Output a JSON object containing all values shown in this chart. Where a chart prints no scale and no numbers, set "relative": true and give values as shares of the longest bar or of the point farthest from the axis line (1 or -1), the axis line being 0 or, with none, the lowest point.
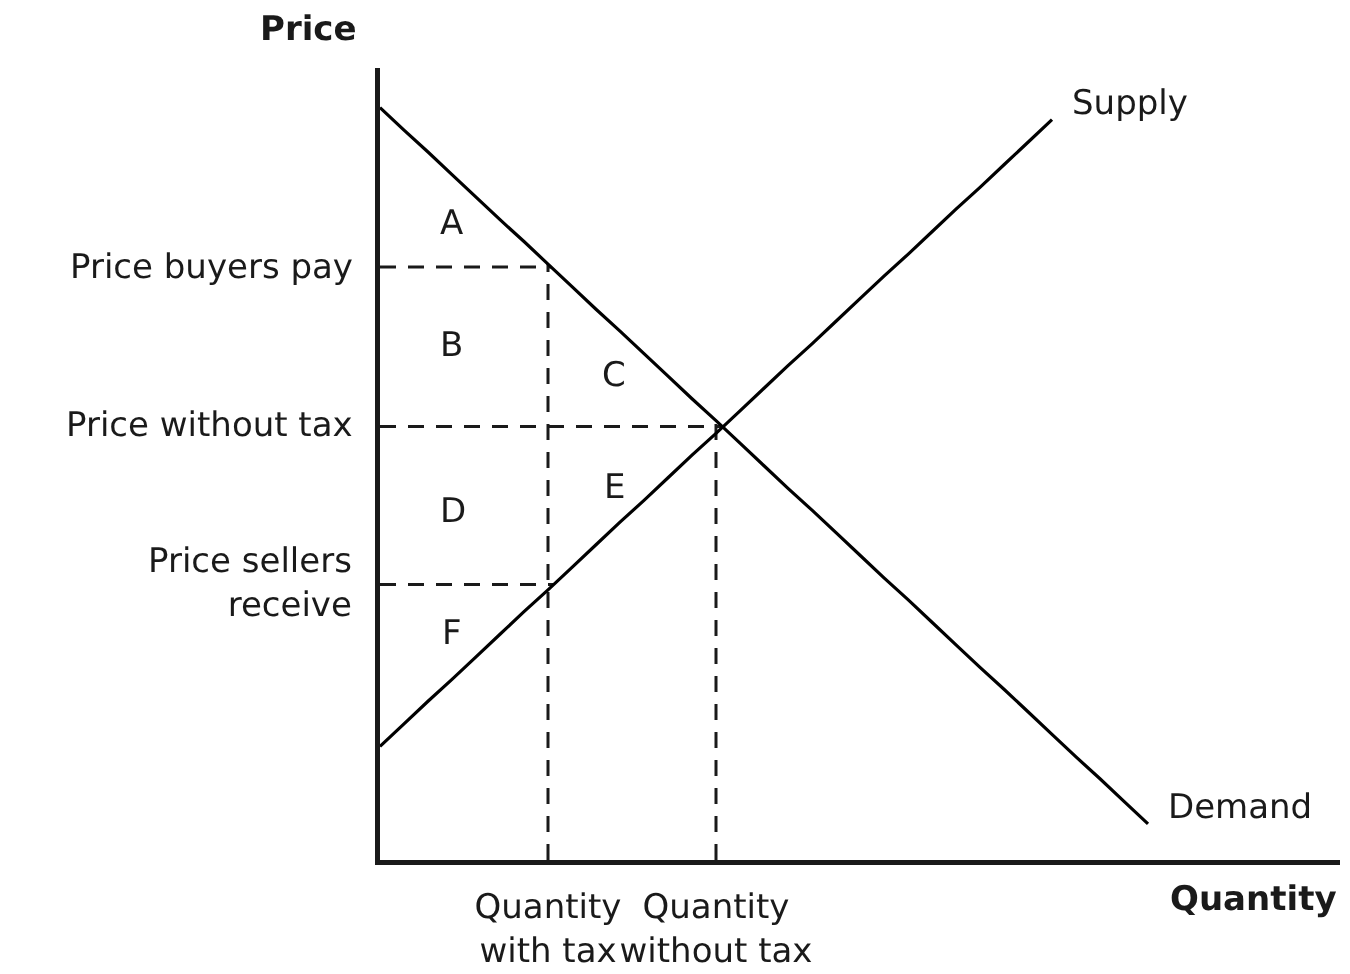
{
  "chart_data": {
    "type": "line",
    "relative": true,
    "xlabel": "Quantity",
    "ylabel": "Price",
    "categories": [
      null,
      null,
      null,
      null,
      null,
      null,
      null,
      "Quantity with tax",
      null,
      null,
      null,
      null,
      null,
      null,
      "Quantity without tax",
      null,
      null,
      null,
      null,
      null,
      null,
      null,
      null,
      null,
      null,
      null,
      null,
      null,
      null,
      null,
      null,
      null,
      null,
      null,
      null,
      null,
      null,
      null,
      null,
      null,
      null
    ],
    "series": [
      {
        "name": "Supply",
        "color": "#000000",
        "values": [
          0.151,
          0.181,
          0.211,
          0.24,
          0.27,
          0.3,
          0.33,
          0.359,
          0.389,
          0.419,
          0.449,
          0.478,
          0.508,
          0.538,
          0.567,
          0.597,
          0.627,
          0.657,
          0.686,
          0.716,
          0.746,
          0.776,
          0.805,
          0.835,
          0.865,
          0.894,
          0.924,
          0.954,
          0.984,
          null,
          null,
          null,
          null,
          null,
          null,
          null,
          null,
          null,
          null,
          null,
          null
        ]
      },
      {
        "name": "Demand",
        "color": "#000000",
        "values": [
          1,
          0.97,
          0.941,
          0.911,
          0.881,
          0.851,
          0.822,
          0.792,
          0.762,
          0.732,
          0.703,
          0.673,
          0.643,
          0.613,
          0.584,
          0.554,
          0.524,
          0.494,
          0.465,
          0.435,
          0.405,
          0.375,
          0.346,
          0.316,
          0.286,
          0.256,
          0.227,
          0.197,
          0.167,
          0.137,
          0.108,
          0.078,
          0.048,
          null,
          null,
          null,
          null,
          null,
          null,
          null,
          null
        ]
      }
    ],
    "ref_lines": [
      {
        "axis": "y",
        "value": 0.788,
        "label": "Price buyers pay",
        "line_style": "dashed"
      },
      {
        "axis": "y",
        "value": 0.576,
        "label": "Price without tax",
        "line_style": "dashed"
      },
      {
        "axis": "y",
        "value": 0.366,
        "label": "Price sellers receive",
        "line_style": "dashed"
      },
      {
        "axis": "x",
        "value": "Quantity with tax",
        "line_style": "dashed"
      },
      {
        "axis": "x",
        "value": "Quantity without tax",
        "line_style": "dashed"
      }
    ],
    "annotations": [
      "A",
      "B",
      "C",
      "D",
      "E",
      "F"
    ]
  }
}
